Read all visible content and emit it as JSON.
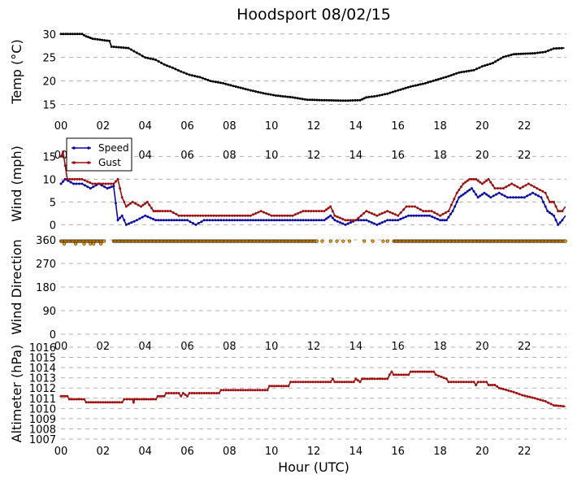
{
  "figure": {
    "title": "Hoodsport 08/02/15",
    "xlabel": "Hour (UTC)",
    "xtick_labels": [
      "00",
      "02",
      "04",
      "06",
      "08",
      "10",
      "12",
      "14",
      "16",
      "18",
      "20",
      "22"
    ]
  },
  "chart_data": [
    {
      "type": "line",
      "ylabel": "Temp ($^\\circ$C)",
      "ylabel_display": "Temp (°C)",
      "xlim": [
        0,
        24
      ],
      "ylim": [
        13,
        31
      ],
      "yticks": [
        15,
        20,
        25,
        30
      ],
      "grid": true,
      "series": [
        {
          "color": "#000000",
          "points": [
            [
              0,
              30
            ],
            [
              1.0,
              30
            ],
            [
              1.2,
              29.5
            ],
            [
              1.5,
              29
            ],
            [
              2.3,
              28.5
            ],
            [
              2.4,
              27.3
            ],
            [
              3.2,
              27
            ],
            [
              3.6,
              26
            ],
            [
              4.0,
              25
            ],
            [
              4.5,
              24.5
            ],
            [
              4.9,
              23.5
            ],
            [
              5.3,
              22.8
            ],
            [
              5.7,
              22
            ],
            [
              6.1,
              21.3
            ],
            [
              6.6,
              20.8
            ],
            [
              7.1,
              20
            ],
            [
              7.7,
              19.5
            ],
            [
              8.3,
              18.8
            ],
            [
              9.0,
              18.0
            ],
            [
              9.6,
              17.4
            ],
            [
              10.2,
              16.9
            ],
            [
              11.0,
              16.5
            ],
            [
              11.7,
              16.0
            ],
            [
              12.5,
              15.9
            ],
            [
              13.5,
              15.8
            ],
            [
              14.2,
              15.9
            ],
            [
              14.5,
              16.5
            ],
            [
              15.0,
              16.8
            ],
            [
              15.5,
              17.3
            ],
            [
              16.0,
              18.0
            ],
            [
              16.6,
              18.8
            ],
            [
              17.3,
              19.5
            ],
            [
              17.8,
              20.2
            ],
            [
              18.4,
              21.0
            ],
            [
              18.9,
              21.8
            ],
            [
              19.6,
              22.3
            ],
            [
              20.0,
              23.1
            ],
            [
              20.5,
              23.8
            ],
            [
              21.0,
              25.1
            ],
            [
              21.5,
              25.7
            ],
            [
              22.5,
              25.9
            ],
            [
              23.0,
              26.2
            ],
            [
              23.4,
              26.9
            ],
            [
              23.9,
              27.0
            ]
          ]
        }
      ]
    },
    {
      "type": "line",
      "ylabel": "Wind (mph)",
      "xlim": [
        0,
        24
      ],
      "ylim": [
        -1,
        19
      ],
      "yticks": [
        0,
        5,
        10,
        15
      ],
      "grid": true,
      "legend": "top-left",
      "series": [
        {
          "name": "Speed",
          "color": "#0a0aa5",
          "points": [
            [
              0,
              9
            ],
            [
              0.2,
              10
            ],
            [
              0.6,
              9
            ],
            [
              1.0,
              9
            ],
            [
              1.4,
              8
            ],
            [
              1.8,
              9
            ],
            [
              2.2,
              8
            ],
            [
              2.5,
              8.5
            ],
            [
              2.7,
              1
            ],
            [
              2.9,
              2
            ],
            [
              3.1,
              0
            ],
            [
              3.6,
              1
            ],
            [
              4.0,
              2
            ],
            [
              4.5,
              1
            ],
            [
              5.0,
              1
            ],
            [
              5.5,
              1
            ],
            [
              6.0,
              1
            ],
            [
              6.4,
              0
            ],
            [
              6.8,
              1
            ],
            [
              7.2,
              1
            ],
            [
              7.6,
              1
            ],
            [
              8.0,
              1
            ],
            [
              8.5,
              1
            ],
            [
              9.0,
              1
            ],
            [
              9.5,
              1
            ],
            [
              10.0,
              1
            ],
            [
              10.5,
              1
            ],
            [
              11.0,
              1
            ],
            [
              11.5,
              1
            ],
            [
              12.0,
              1
            ],
            [
              12.5,
              1
            ],
            [
              12.8,
              2
            ],
            [
              13.0,
              1
            ],
            [
              13.5,
              0
            ],
            [
              14.0,
              1
            ],
            [
              14.5,
              1
            ],
            [
              15.0,
              0
            ],
            [
              15.5,
              1
            ],
            [
              16.0,
              1
            ],
            [
              16.5,
              2
            ],
            [
              17.0,
              2
            ],
            [
              17.5,
              2
            ],
            [
              18.0,
              1
            ],
            [
              18.3,
              1
            ],
            [
              18.6,
              3
            ],
            [
              18.9,
              6
            ],
            [
              19.2,
              7
            ],
            [
              19.5,
              8
            ],
            [
              19.8,
              6
            ],
            [
              20.1,
              7
            ],
            [
              20.4,
              6
            ],
            [
              20.8,
              7
            ],
            [
              21.2,
              6
            ],
            [
              21.6,
              6
            ],
            [
              22.0,
              6
            ],
            [
              22.4,
              7
            ],
            [
              22.8,
              6
            ],
            [
              23.1,
              3
            ],
            [
              23.4,
              2
            ],
            [
              23.6,
              0
            ],
            [
              23.8,
              1
            ],
            [
              23.95,
              2
            ]
          ]
        },
        {
          "name": "Gust",
          "color": "#9b1010",
          "points": [
            [
              0,
              15
            ],
            [
              0.1,
              16
            ],
            [
              0.3,
              10
            ],
            [
              1.0,
              10
            ],
            [
              1.5,
              9
            ],
            [
              2.0,
              9
            ],
            [
              2.5,
              9
            ],
            [
              2.7,
              10
            ],
            [
              2.9,
              6
            ],
            [
              3.1,
              4
            ],
            [
              3.4,
              5
            ],
            [
              3.8,
              4
            ],
            [
              4.1,
              5
            ],
            [
              4.4,
              3
            ],
            [
              4.7,
              3
            ],
            [
              5.2,
              3
            ],
            [
              5.6,
              2
            ],
            [
              6.0,
              2
            ],
            [
              6.5,
              2
            ],
            [
              7.0,
              2
            ],
            [
              7.5,
              2
            ],
            [
              8.0,
              2
            ],
            [
              8.5,
              2
            ],
            [
              9.0,
              2
            ],
            [
              9.5,
              3
            ],
            [
              10.0,
              2
            ],
            [
              10.5,
              2
            ],
            [
              11.0,
              2
            ],
            [
              11.5,
              3
            ],
            [
              12.0,
              3
            ],
            [
              12.5,
              3
            ],
            [
              12.8,
              4
            ],
            [
              13.0,
              2
            ],
            [
              13.5,
              1
            ],
            [
              14.0,
              1
            ],
            [
              14.5,
              3
            ],
            [
              15.0,
              2
            ],
            [
              15.5,
              3
            ],
            [
              16.0,
              2
            ],
            [
              16.4,
              4
            ],
            [
              16.8,
              4
            ],
            [
              17.2,
              3
            ],
            [
              17.6,
              3
            ],
            [
              18.0,
              2
            ],
            [
              18.4,
              3
            ],
            [
              18.8,
              7
            ],
            [
              19.1,
              9
            ],
            [
              19.4,
              10
            ],
            [
              19.7,
              10
            ],
            [
              20.0,
              9
            ],
            [
              20.3,
              10
            ],
            [
              20.6,
              8
            ],
            [
              21.0,
              8
            ],
            [
              21.4,
              9
            ],
            [
              21.8,
              8
            ],
            [
              22.2,
              9
            ],
            [
              22.6,
              8
            ],
            [
              23.0,
              7
            ],
            [
              23.2,
              5
            ],
            [
              23.4,
              5
            ],
            [
              23.6,
              3
            ],
            [
              23.8,
              3
            ],
            [
              23.95,
              4
            ]
          ]
        }
      ]
    },
    {
      "type": "scatter",
      "ylabel": "Wind Direction",
      "xlim": [
        0,
        24
      ],
      "ylim": [
        0,
        360
      ],
      "yticks": [
        0,
        90,
        180,
        270,
        360
      ],
      "grid": true,
      "series": [
        {
          "color": "#ffa500",
          "marker_edge": "#000000",
          "value": 355,
          "x_ranges": [
            [
              0,
              2.1
            ],
            [
              2.5,
              12.2
            ],
            [
              15.8,
              24
            ]
          ],
          "x_isolated": [
            12.4,
            12.8,
            13.1,
            13.4,
            13.7,
            14.4,
            14.8,
            15.3,
            15.5
          ],
          "lower_points": [
            [
              0.15,
              345
            ],
            [
              0.7,
              345
            ],
            [
              1.1,
              345
            ],
            [
              1.4,
              345
            ],
            [
              1.55,
              345
            ],
            [
              1.9,
              345
            ]
          ]
        }
      ]
    },
    {
      "type": "line",
      "ylabel": "Altimeter (hPa)",
      "xlim": [
        0,
        24
      ],
      "ylim": [
        1007,
        1016
      ],
      "yticks": [
        1007,
        1008,
        1009,
        1010,
        1011,
        1012,
        1013,
        1014,
        1015,
        1016
      ],
      "grid": true,
      "series": [
        {
          "color": "#a01010",
          "points": [
            [
              0,
              1011.2
            ],
            [
              0.3,
              1011.2
            ],
            [
              0.4,
              1010.9
            ],
            [
              1.1,
              1010.9
            ],
            [
              1.2,
              1010.6
            ],
            [
              2.9,
              1010.6
            ],
            [
              3.0,
              1010.9
            ],
            [
              3.4,
              1010.9
            ],
            [
              3.45,
              1010.6
            ],
            [
              3.5,
              1010.9
            ],
            [
              4.5,
              1010.9
            ],
            [
              4.6,
              1011.2
            ],
            [
              4.9,
              1011.2
            ],
            [
              5.0,
              1011.5
            ],
            [
              5.6,
              1011.5
            ],
            [
              5.7,
              1011.2
            ],
            [
              5.8,
              1011.5
            ],
            [
              6.0,
              1011.2
            ],
            [
              6.1,
              1011.5
            ],
            [
              7.5,
              1011.5
            ],
            [
              7.6,
              1011.8
            ],
            [
              9.8,
              1011.8
            ],
            [
              9.9,
              1012.2
            ],
            [
              10.8,
              1012.2
            ],
            [
              10.9,
              1012.6
            ],
            [
              12.8,
              1012.6
            ],
            [
              12.9,
              1012.9
            ],
            [
              13.0,
              1012.6
            ],
            [
              13.9,
              1012.6
            ],
            [
              14.0,
              1012.9
            ],
            [
              14.2,
              1012.6
            ],
            [
              14.3,
              1012.9
            ],
            [
              15.5,
              1012.9
            ],
            [
              15.6,
              1013.3
            ],
            [
              15.7,
              1013.6
            ],
            [
              15.8,
              1013.3
            ],
            [
              16.5,
              1013.3
            ],
            [
              16.6,
              1013.6
            ],
            [
              17.7,
              1013.6
            ],
            [
              17.8,
              1013.3
            ],
            [
              18.3,
              1012.9
            ],
            [
              18.4,
              1012.6
            ],
            [
              19.6,
              1012.6
            ],
            [
              19.7,
              1012.3
            ],
            [
              19.8,
              1012.6
            ],
            [
              20.2,
              1012.6
            ],
            [
              20.3,
              1012.3
            ],
            [
              20.6,
              1012.3
            ],
            [
              20.8,
              1012.0
            ],
            [
              21.0,
              1011.9
            ],
            [
              21.5,
              1011.6
            ],
            [
              21.9,
              1011.3
            ],
            [
              22.5,
              1011.0
            ],
            [
              23.0,
              1010.7
            ],
            [
              23.4,
              1010.3
            ],
            [
              23.95,
              1010.2
            ]
          ]
        }
      ]
    }
  ]
}
